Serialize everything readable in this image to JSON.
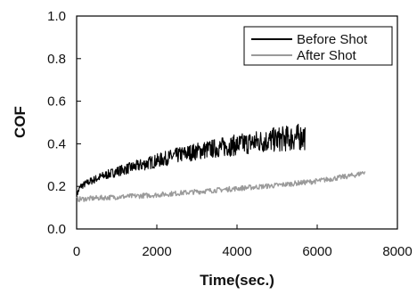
{
  "chart_data": {
    "type": "line",
    "xlabel": "Time(sec.)",
    "ylabel": "COF",
    "xlim": [
      0,
      8000
    ],
    "ylim": [
      0.0,
      1.0
    ],
    "x_ticks": [
      "0",
      "2000",
      "4000",
      "6000",
      "8000"
    ],
    "y_ticks": [
      "0.0",
      "0.2",
      "0.4",
      "0.6",
      "0.8",
      "1.0"
    ],
    "grid": false,
    "legend_position": "top-right",
    "series": [
      {
        "name": "Before Shot",
        "color": "#000000",
        "x": [
          0,
          100,
          300,
          600,
          1000,
          1500,
          2000,
          2500,
          3000,
          3500,
          4000,
          4500,
          5000,
          5500,
          5700
        ],
        "y": [
          0.16,
          0.2,
          0.22,
          0.245,
          0.27,
          0.295,
          0.32,
          0.345,
          0.365,
          0.38,
          0.395,
          0.41,
          0.42,
          0.43,
          0.435
        ]
      },
      {
        "name": "After Shot",
        "color": "#9a9a9a",
        "x": [
          0,
          100,
          500,
          1000,
          2000,
          3000,
          4000,
          5000,
          6000,
          7000,
          7200
        ],
        "y": [
          0.14,
          0.14,
          0.145,
          0.15,
          0.16,
          0.175,
          0.19,
          0.205,
          0.225,
          0.255,
          0.27
        ]
      }
    ]
  }
}
